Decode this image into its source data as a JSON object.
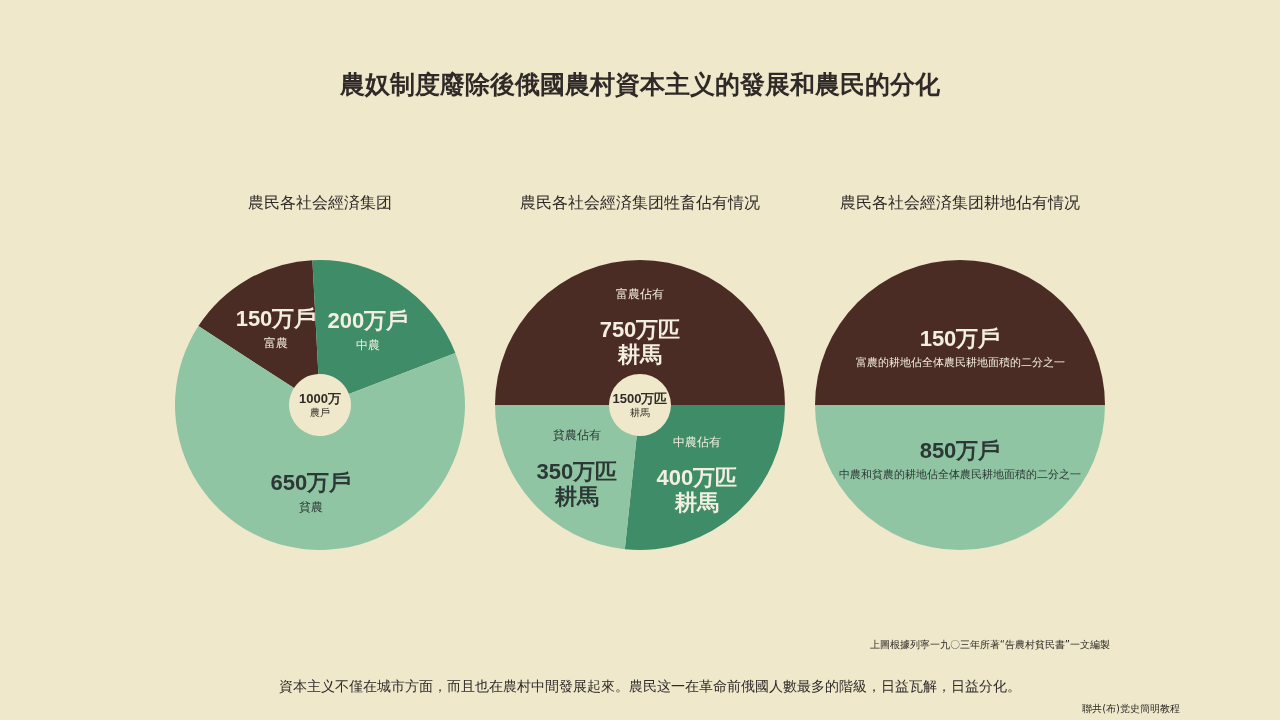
{
  "chart_data": [
    {
      "type": "other",
      "title": "農奴制度廢除後俄國農村資本主义的發展和農民的分化"
    },
    {
      "type": "donut",
      "title": "農民各社会經済集团",
      "categories": [
        "富農",
        "中農",
        "貧農"
      ],
      "values": [
        150,
        200,
        650
      ],
      "colors": [
        "#4b2c25",
        "#3f8c68",
        "#8fc5a2"
      ],
      "value_labels": [
        "150万戶",
        "200万戶",
        "650万戶"
      ],
      "annotations": [
        "1000万",
        "農戶"
      ]
    },
    {
      "type": "donut",
      "title": "農民各社会經済集团牲畜佔有情况",
      "categories": [
        "富農佔有",
        "中農佔有",
        "貧農佔有"
      ],
      "values": [
        750,
        400,
        350
      ],
      "colors": [
        "#4b2c25",
        "#3f8c68",
        "#8fc5a2"
      ],
      "value_labels": [
        "750万匹耕馬",
        "400万匹耕馬",
        "350万匹耕馬"
      ],
      "annotations": [
        "1500万匹",
        "耕馬"
      ]
    },
    {
      "type": "pie",
      "title": "農民各社会經済集团耕地佔有情况",
      "categories": [
        "富農的耕地佔全体農民耕地面積的二分之一",
        "中農和貧農的耕地佔全体農民耕地面積的二分之一"
      ],
      "values": [
        50,
        50
      ],
      "colors": [
        "#4b2c25",
        "#8fc5a2"
      ],
      "annotations": [
        "150万戶",
        "850万戶"
      ]
    },
    {
      "type": "other",
      "annotations": [
        "上圖根據列寧一九〇三年所著“告農村貧民書”一文編製",
        "資本主义不僅在城市方面，而且也在農村中間發展起來。農民这一在革命前俄國人數最多的階級，日益瓦解，日益分化。",
        "聯共(布)党史簡明教程"
      ]
    }
  ]
}
